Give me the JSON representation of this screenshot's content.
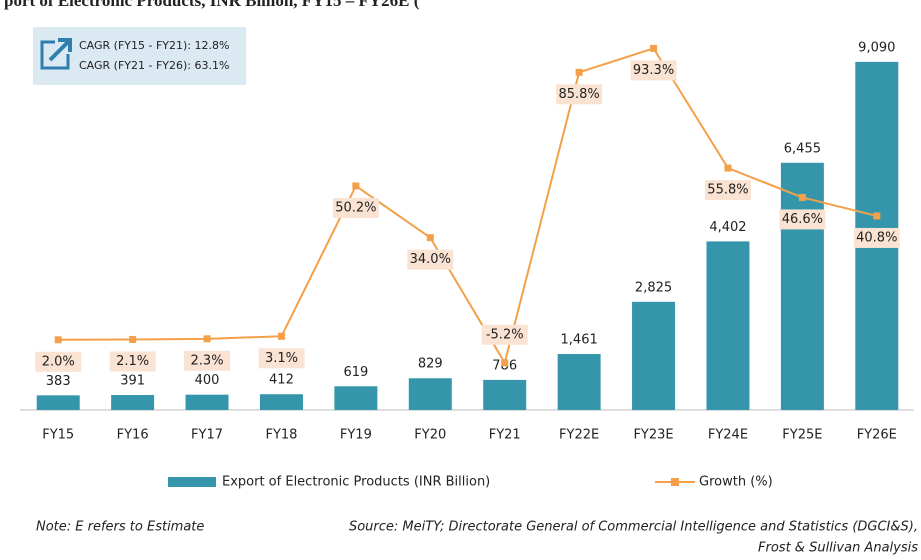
{
  "chart_data": {
    "type": "bar-line",
    "title": "port of Electronic Products, INR Billion, FY15 – FY26E (",
    "categories": [
      "FY15",
      "FY16",
      "FY17",
      "FY18",
      "FY19",
      "FY20",
      "FY21",
      "FY22E",
      "FY23E",
      "FY24E",
      "FY25E",
      "FY26E"
    ],
    "series": [
      {
        "name": "Export of Electronic Products (INR Billion)",
        "type": "bar",
        "color": "#3596ab",
        "values": [
          383,
          391,
          400,
          412,
          619,
          829,
          786,
          1461,
          2825,
          4402,
          6455,
          9090
        ],
        "value_labels": [
          "383",
          "391",
          "400",
          "412",
          "619",
          "829",
          "786",
          "1,461",
          "2,825",
          "4,402",
          "6,455",
          "9,090"
        ]
      },
      {
        "name": "Growth (%)",
        "type": "line",
        "axis": "y2",
        "color": "#f4a04a",
        "values": [
          2.0,
          2.1,
          2.3,
          3.1,
          50.2,
          34.0,
          -5.2,
          85.8,
          93.3,
          55.8,
          46.6,
          40.8
        ],
        "value_labels": [
          "2.0%",
          "2.1%",
          "2.3%",
          "3.1%",
          "50.2%",
          "34.0%",
          "-5.2%",
          "85.8%",
          "93.3%",
          "55.8%",
          "46.6%",
          "40.8%"
        ]
      }
    ],
    "ylim": [
      0,
      10000
    ],
    "y2lim": [
      -20,
      100
    ],
    "annotations": [
      "CAGR (FY15 - FY21): 12.8%",
      "CAGR (FY21 - FY26): 63.1%"
    ],
    "note": "Note: E refers to Estimate",
    "source": [
      "Source: MeiTY; Directorate General of Commercial Intelligence and Statistics (DGCI&S),",
      "Frost & Sullivan Analysis"
    ]
  }
}
